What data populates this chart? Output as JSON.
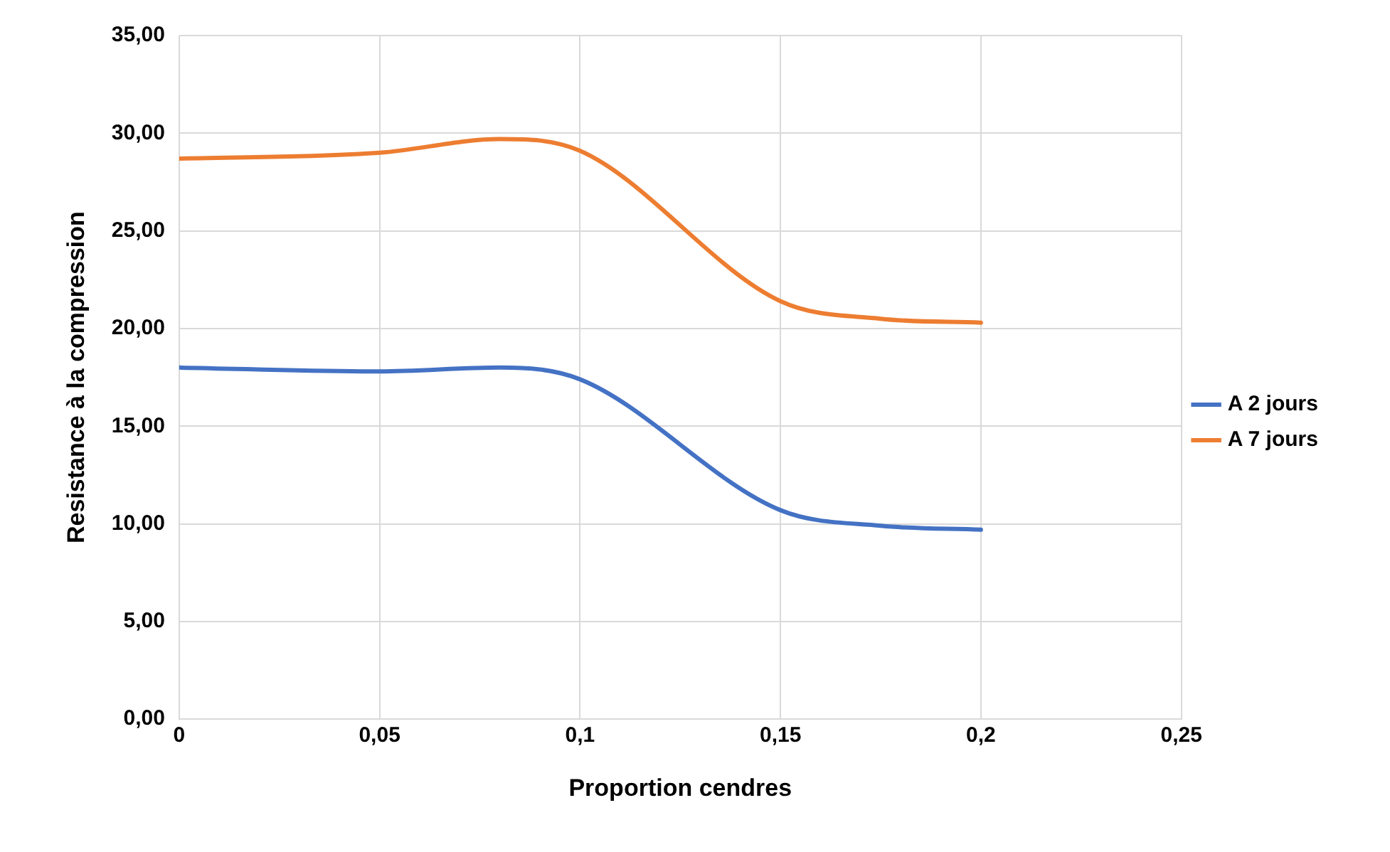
{
  "chart_data": {
    "type": "line",
    "xlabel": "Proportion cendres",
    "ylabel": "Resistance à la compression",
    "x": [
      0,
      0.05,
      0.08,
      0.1,
      0.15,
      0.175,
      0.2
    ],
    "series": [
      {
        "name": "A 2 jours",
        "color": "#4472c4",
        "values": [
          18.0,
          17.8,
          18.0,
          17.4,
          10.7,
          9.9,
          9.7
        ]
      },
      {
        "name": "A 7 jours",
        "color": "#ed7d31",
        "values": [
          28.7,
          29.0,
          29.7,
          29.1,
          21.4,
          20.5,
          20.3
        ]
      }
    ],
    "xlim": [
      0,
      0.25
    ],
    "xticks": [
      0,
      {
        "value": 0.05,
        "label": "0,05"
      },
      {
        "value": 0.1,
        "label": "0,1"
      },
      {
        "value": 0.15,
        "label": "0,15"
      },
      {
        "value": 0.2,
        "label": "0,2"
      },
      {
        "value": 0.25,
        "label": "0,25"
      }
    ],
    "ylim": [
      0,
      35
    ],
    "yticks": [
      {
        "value": 0,
        "label": "0,00"
      },
      {
        "value": 5,
        "label": "5,00"
      },
      {
        "value": 10,
        "label": "10,00"
      },
      {
        "value": 15,
        "label": "15,00"
      },
      {
        "value": 20,
        "label": "20,00"
      },
      {
        "value": 25,
        "label": "25,00"
      },
      {
        "value": 30,
        "label": "30,00"
      },
      {
        "value": 35,
        "label": "35,00"
      }
    ],
    "grid": true,
    "legend": "right",
    "marker": "none",
    "line_style": "solid"
  }
}
